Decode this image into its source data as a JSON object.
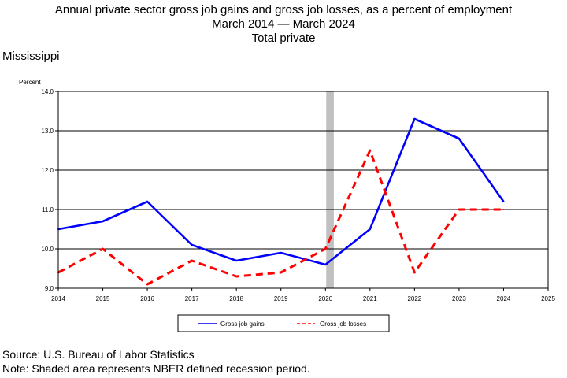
{
  "header": {
    "title": "Annual private sector gross job gains and gross job losses, as a percent of employment",
    "subtitle": "March 2014 — March 2024",
    "series_title": "Total private",
    "state": "Mississippi"
  },
  "footer": {
    "source": "Source: U.S. Bureau of Labor Statistics",
    "note": "Note: Shaded area represents NBER defined recession period."
  },
  "chart_data": {
    "type": "line",
    "ylabel": "Percent",
    "xlabel": "",
    "xlim": [
      2014,
      2025
    ],
    "ylim": [
      9.0,
      14.0
    ],
    "x_ticks": [
      2014,
      2015,
      2016,
      2017,
      2018,
      2019,
      2020,
      2021,
      2022,
      2023,
      2024,
      2025
    ],
    "y_ticks": [
      "9.0",
      "10.0",
      "11.0",
      "12.0",
      "13.0",
      "14.0"
    ],
    "grid": "horizontal",
    "legend_position": "bottom-center",
    "recession": {
      "start": 2020.0,
      "end": 2020.17,
      "color": "#c0c0c0"
    },
    "x": [
      2014,
      2015,
      2016,
      2017,
      2018,
      2019,
      2020,
      2021,
      2022,
      2023,
      2024
    ],
    "series": [
      {
        "name": "Gross job gains",
        "color": "#0000ff",
        "style": "solid",
        "values": [
          10.5,
          10.7,
          11.2,
          10.1,
          9.7,
          9.9,
          9.6,
          10.5,
          13.3,
          12.8,
          11.2
        ]
      },
      {
        "name": "Gross job losses",
        "color": "#ff0000",
        "style": "dashed",
        "values": [
          9.4,
          10.0,
          9.1,
          9.7,
          9.3,
          9.4,
          10.0,
          12.5,
          9.4,
          11.0,
          11.0
        ]
      }
    ]
  }
}
